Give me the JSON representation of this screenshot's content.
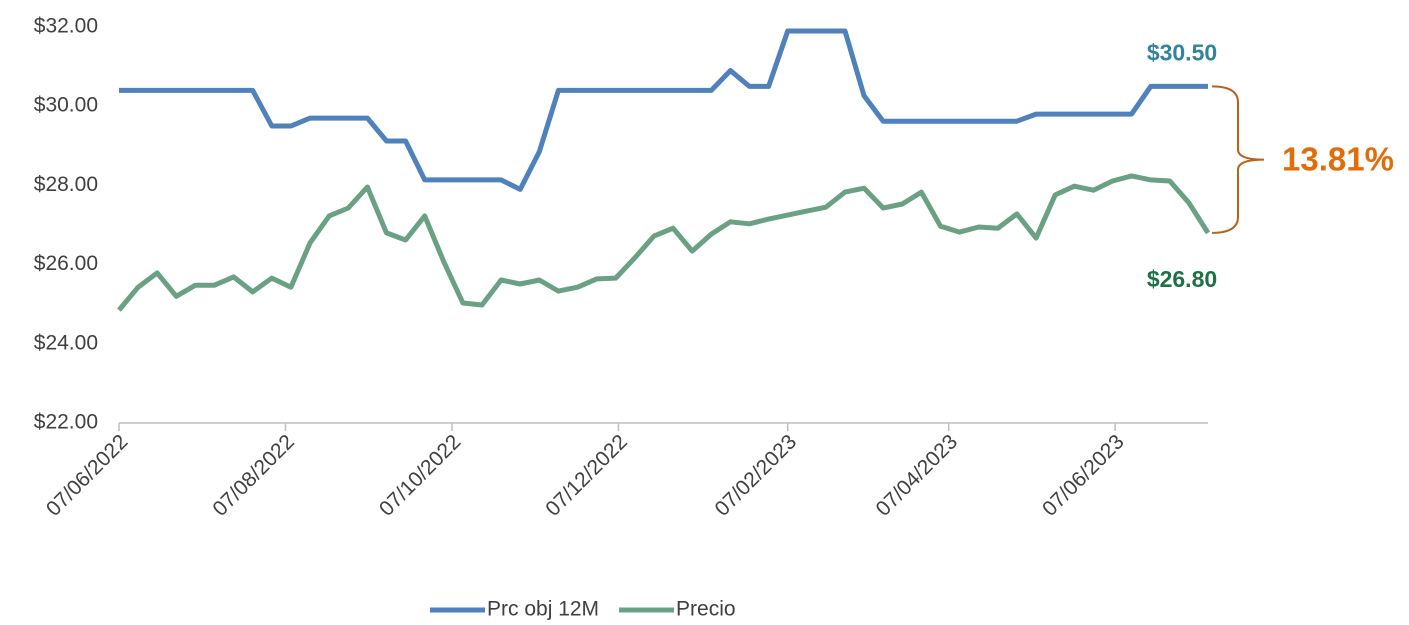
{
  "chart_data": {
    "type": "line",
    "x": [
      "2022-06-07",
      "2022-06-14",
      "2022-06-21",
      "2022-06-28",
      "2022-07-05",
      "2022-07-12",
      "2022-07-19",
      "2022-07-26",
      "2022-08-02",
      "2022-08-09",
      "2022-08-16",
      "2022-08-23",
      "2022-08-30",
      "2022-09-06",
      "2022-09-13",
      "2022-09-20",
      "2022-09-27",
      "2022-10-04",
      "2022-10-11",
      "2022-10-18",
      "2022-10-25",
      "2022-11-01",
      "2022-11-08",
      "2022-11-15",
      "2022-11-22",
      "2022-11-29",
      "2022-12-06",
      "2022-12-13",
      "2022-12-20",
      "2022-12-27",
      "2023-01-03",
      "2023-01-10",
      "2023-01-17",
      "2023-01-24",
      "2023-01-31",
      "2023-02-07",
      "2023-02-14",
      "2023-02-21",
      "2023-02-28",
      "2023-03-07",
      "2023-03-14",
      "2023-03-21",
      "2023-03-28",
      "2023-04-04",
      "2023-04-11",
      "2023-04-18",
      "2023-04-25",
      "2023-05-02",
      "2023-05-09",
      "2023-05-16",
      "2023-05-23",
      "2023-05-30",
      "2023-06-06",
      "2023-06-13",
      "2023-06-20",
      "2023-06-27",
      "2023-07-04",
      "2023-07-11"
    ],
    "series": [
      {
        "name": "Prc obj 12M",
        "color": "#4f81bd",
        "end_label": "$30.50",
        "end_label_color": "#31849b",
        "values": [
          30.4,
          30.4,
          30.4,
          30.4,
          30.4,
          30.4,
          30.4,
          30.4,
          29.5,
          29.5,
          29.7,
          29.7,
          29.7,
          29.7,
          29.12,
          29.12,
          28.14,
          28.14,
          28.14,
          28.14,
          28.14,
          27.9,
          28.85,
          30.4,
          30.4,
          30.4,
          30.4,
          30.4,
          30.4,
          30.4,
          30.4,
          30.4,
          30.9,
          30.5,
          30.5,
          31.9,
          31.9,
          31.9,
          31.9,
          30.26,
          29.62,
          29.62,
          29.62,
          29.62,
          29.62,
          29.62,
          29.62,
          29.62,
          29.8,
          29.8,
          29.8,
          29.8,
          29.8,
          29.8,
          30.5,
          30.5,
          30.5,
          30.5
        ]
      },
      {
        "name": "Precio",
        "color": "#6aa084",
        "end_label": "$26.80",
        "end_label_color": "#1e7145",
        "values": [
          24.85,
          25.43,
          25.79,
          25.2,
          25.48,
          25.48,
          25.69,
          25.31,
          25.66,
          25.43,
          26.55,
          27.23,
          27.43,
          27.96,
          26.8,
          26.62,
          27.23,
          26.07,
          25.03,
          24.98,
          25.61,
          25.51,
          25.61,
          25.33,
          25.43,
          25.64,
          25.66,
          26.17,
          26.72,
          26.92,
          26.34,
          26.77,
          27.08,
          27.03,
          27.15,
          27.25,
          27.35,
          27.45,
          27.83,
          27.93,
          27.43,
          27.53,
          27.83,
          26.97,
          26.82,
          26.95,
          26.92,
          27.28,
          26.67,
          27.76,
          27.98,
          27.88,
          28.11,
          28.24,
          28.14,
          28.11,
          27.56,
          26.8
        ]
      }
    ],
    "annotation": {
      "text": "13.81%",
      "color": "#e36c09",
      "bracket_color": "#b8621b"
    },
    "ylim": [
      22,
      32
    ],
    "yticks": [
      {
        "value": 22,
        "label": "$22.00"
      },
      {
        "value": 24,
        "label": "$24.00"
      },
      {
        "value": 26,
        "label": "$26.00"
      },
      {
        "value": 28,
        "label": "$28.00"
      },
      {
        "value": 30,
        "label": "$30.00"
      },
      {
        "value": 32,
        "label": "$32.00"
      }
    ],
    "xlim": [
      "2022-06-07",
      "2023-07-11"
    ],
    "xticks": [
      {
        "value": "2022-06-07",
        "label": "07/06/2022"
      },
      {
        "value": "2022-08-07",
        "label": "07/08/2022"
      },
      {
        "value": "2022-10-07",
        "label": "07/10/2022"
      },
      {
        "value": "2022-12-07",
        "label": "07/12/2022"
      },
      {
        "value": "2023-02-07",
        "label": "07/02/2023"
      },
      {
        "value": "2023-04-07",
        "label": "07/04/2023"
      },
      {
        "value": "2023-06-07",
        "label": "07/06/2023"
      }
    ],
    "grid": false,
    "legend": "bottom"
  }
}
